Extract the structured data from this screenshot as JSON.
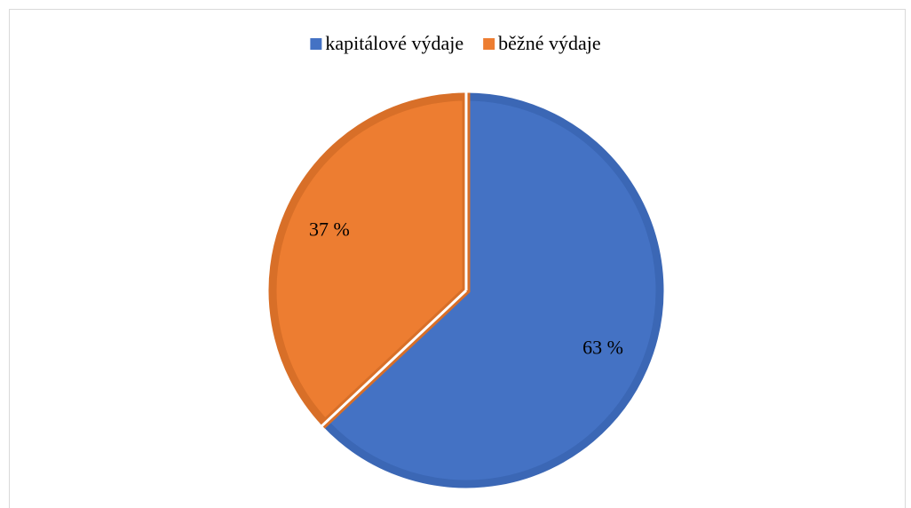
{
  "chart_data": {
    "type": "pie",
    "categories": [
      "kapitálové výdaje",
      "běžné výdaje"
    ],
    "values": [
      63,
      37
    ],
    "value_labels": [
      "63 %",
      "37 %"
    ],
    "colors": [
      "#4472c4",
      "#ed7d31"
    ],
    "border_colors": [
      "#3b67b5",
      "#d86f28"
    ],
    "legend": "top"
  }
}
